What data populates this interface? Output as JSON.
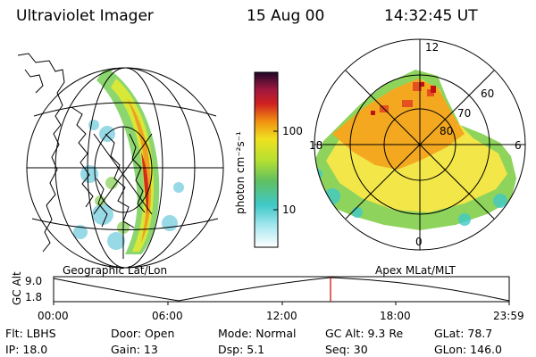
{
  "header": {
    "instrument": "Ultraviolet Imager",
    "date": "15 Aug 00",
    "time": "14:32:45 UT"
  },
  "geo_panel": {
    "label": "Geographic Lat/Lon"
  },
  "polar_panel": {
    "label": "Apex MLat/MLT",
    "mlt_labels": {
      "top": "12",
      "left": "18",
      "right": "6",
      "bottom": "0"
    },
    "lat_labels": [
      "60",
      "70",
      "80"
    ]
  },
  "colorbar": {
    "unit_label": "photon cm⁻²s⁻¹",
    "ticks": [
      "100",
      "10"
    ],
    "scale": "log"
  },
  "altitude_plot": {
    "ylabel": "GC Alt",
    "yticks": [
      "9.0",
      "1.8"
    ],
    "xticks": [
      "00:00",
      "06:00",
      "12:00",
      "18:00",
      "23:59"
    ],
    "cursor_time": "14:32",
    "cursor_color": "#cc0000"
  },
  "info": {
    "filter": "Flt: LBHS",
    "ip": "IP: 18.0",
    "door": "Door: Open",
    "gain": "Gain: 13",
    "mode": "Mode: Normal",
    "dsp": "Dsp:    5.1",
    "gc_alt": "GC Alt: 9.3 Re",
    "seq": "Seq: 30",
    "glat": "GLat:  78.7",
    "glon": "GLon: 146.0"
  }
}
